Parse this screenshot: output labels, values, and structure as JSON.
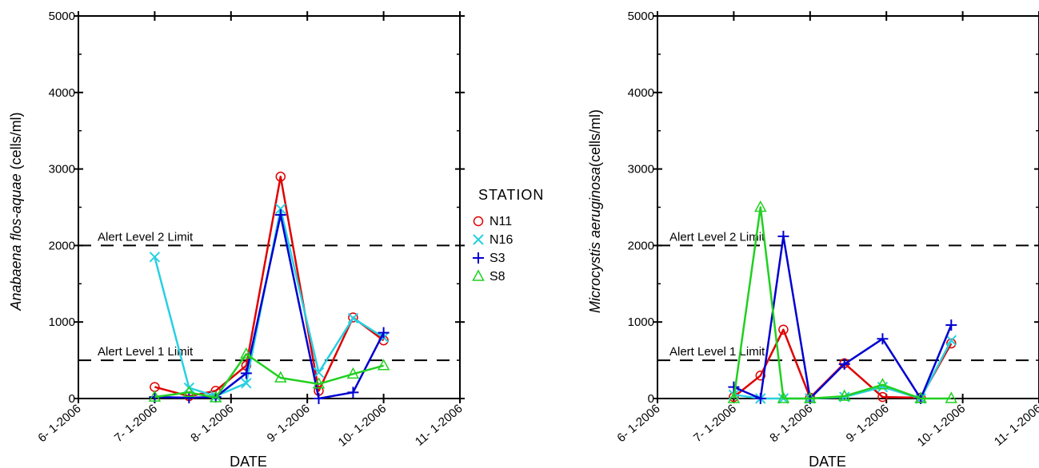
{
  "chart_data": [
    {
      "type": "line",
      "xlabel": "DATE",
      "ylabel_italic": "Anabaena flos-aquae",
      "ylabel_unit": " (cells/ml)",
      "ylim": [
        0,
        5000
      ],
      "yticks": [
        "0",
        "1000",
        "2000",
        "3000",
        "4000",
        "5000"
      ],
      "xticks": [
        "6- 1-2006",
        "7- 1-2006",
        "8- 1-2006",
        "9- 1-2006",
        "10- 1-2006",
        "11- 1-2006"
      ],
      "alert_lines": [
        {
          "label": "Alert Level 2 Limit",
          "value": 2000
        },
        {
          "label": "Alert Level 1 Limit",
          "value": 500
        }
      ],
      "series": [
        {
          "name": "N11",
          "marker": "circle",
          "color": "#e00000",
          "points": [
            [
              1.0,
              150
            ],
            [
              1.45,
              30
            ],
            [
              1.8,
              100
            ],
            [
              2.2,
              430
            ],
            [
              2.65,
              2900
            ],
            [
              3.15,
              100
            ],
            [
              3.6,
              1060
            ],
            [
              4.0,
              760
            ]
          ]
        },
        {
          "name": "N16",
          "marker": "x",
          "color": "#28d0e0",
          "points": [
            [
              1.0,
              1850
            ],
            [
              1.45,
              140
            ],
            [
              1.8,
              30
            ],
            [
              2.2,
              200
            ],
            [
              2.65,
              2480
            ],
            [
              3.15,
              340
            ],
            [
              3.6,
              1050
            ],
            [
              4.0,
              800
            ]
          ]
        },
        {
          "name": "S3",
          "marker": "plus",
          "color": "#0000d0",
          "points": [
            [
              1.0,
              20
            ],
            [
              1.45,
              10
            ],
            [
              1.8,
              20
            ],
            [
              2.2,
              330
            ],
            [
              2.65,
              2400
            ],
            [
              3.15,
              0
            ],
            [
              3.6,
              80
            ],
            [
              4.0,
              860
            ]
          ]
        },
        {
          "name": "S8",
          "marker": "triangle",
          "color": "#20d020",
          "points": [
            [
              1.0,
              20
            ],
            [
              1.45,
              80
            ],
            [
              1.8,
              10
            ],
            [
              2.2,
              580
            ],
            [
              2.65,
              270
            ],
            [
              3.15,
              190
            ],
            [
              3.6,
              320
            ],
            [
              4.0,
              430
            ]
          ]
        }
      ]
    },
    {
      "type": "line",
      "xlabel": "DATE",
      "ylabel_italic": "Microcystis aeruginosa",
      "ylabel_unit": "(cells/ml)",
      "ylim": [
        0,
        5000
      ],
      "yticks": [
        "0",
        "1000",
        "2000",
        "3000",
        "4000",
        "5000"
      ],
      "xticks": [
        "6- 1-2006",
        "7- 1-2006",
        "8- 1-2006",
        "9- 1-2006",
        "10- 1-2006",
        "11- 1-2006"
      ],
      "alert_lines": [
        {
          "label": "Alert Level 2 Limit",
          "value": 2000
        },
        {
          "label": "Alert Level 1 Limit",
          "value": 500
        }
      ],
      "series": [
        {
          "name": "N11",
          "marker": "circle",
          "color": "#e00000",
          "points": [
            [
              1.0,
              20
            ],
            [
              1.35,
              300
            ],
            [
              1.65,
              900
            ],
            [
              2.0,
              10
            ],
            [
              2.45,
              460
            ],
            [
              2.95,
              20
            ],
            [
              3.45,
              10
            ],
            [
              3.85,
              720
            ]
          ]
        },
        {
          "name": "N16",
          "marker": "x",
          "color": "#28d0e0",
          "points": [
            [
              1.0,
              50
            ],
            [
              1.35,
              0
            ],
            [
              1.65,
              0
            ],
            [
              2.0,
              0
            ],
            [
              2.45,
              20
            ],
            [
              2.95,
              150
            ],
            [
              3.45,
              0
            ],
            [
              3.85,
              760
            ]
          ]
        },
        {
          "name": "S3",
          "marker": "plus",
          "color": "#0000d0",
          "points": [
            [
              1.0,
              150
            ],
            [
              1.35,
              0
            ],
            [
              1.65,
              2120
            ],
            [
              2.0,
              0
            ],
            [
              2.45,
              450
            ],
            [
              2.95,
              780
            ],
            [
              3.45,
              0
            ],
            [
              3.85,
              960
            ]
          ]
        },
        {
          "name": "S8",
          "marker": "triangle",
          "color": "#20d020",
          "points": [
            [
              1.0,
              0
            ],
            [
              1.35,
              2500
            ],
            [
              1.65,
              0
            ],
            [
              2.0,
              0
            ],
            [
              2.45,
              30
            ],
            [
              2.95,
              180
            ],
            [
              3.45,
              0
            ],
            [
              3.85,
              0
            ]
          ]
        }
      ]
    }
  ],
  "legend": {
    "title": "STATION",
    "items": [
      {
        "name": "N11",
        "marker": "circle",
        "color": "#e00000"
      },
      {
        "name": "N16",
        "marker": "x",
        "color": "#28d0e0"
      },
      {
        "name": "S3",
        "marker": "plus",
        "color": "#0000d0"
      },
      {
        "name": "S8",
        "marker": "triangle",
        "color": "#20d020"
      }
    ]
  }
}
